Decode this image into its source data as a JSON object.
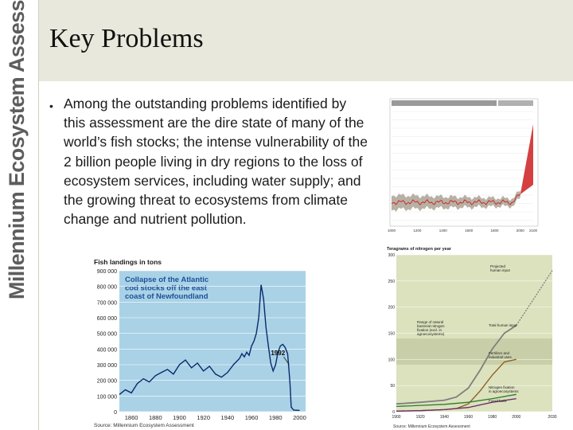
{
  "sidebar": {
    "brand": "Millennium Ecosystem Assessment"
  },
  "slide": {
    "title": "Key Problems",
    "bullet": "Among the outstanding problems identified by this assessment are the dire state of many of the world’s fish stocks; the intense vulnerability of the 2 billion people living in dry regions to the loss of ecosystem services, including water supply; and the growing threat to ecosystems from climate change and nutrient pollution."
  },
  "colors": {
    "header_band": "#e8e8dc",
    "fish_panel": "#a9d2e6",
    "fish_line": "#0a2a6e",
    "fish_title": "#1e4f9a",
    "nitrogen_panel": "#dbe2bd",
    "nitrogen_total": "#7f7f7f",
    "nitrogen_fertilizer": "#8a5a1c",
    "nitrogen_biological": "#2f7a2f",
    "nitrogen_fossil": "#6a2a6a",
    "climate_band": "#b8b0a4",
    "climate_line": "#cc1f1f"
  },
  "chart_data": [
    {
      "type": "line",
      "title": "Fish landings in tons",
      "annotation": "Collapse of the Atlantic cod stocks off the east coast of Newfoundland",
      "marker_label": "1992",
      "source": "Source: Millennium Ecosystem Assessment",
      "x_ticks": [
        "1860",
        "1880",
        "1900",
        "1920",
        "1940",
        "1960",
        "1980",
        "2000"
      ],
      "y_ticks": [
        "0",
        "100 000",
        "200 000",
        "300 000",
        "400 000",
        "500 000",
        "600 000",
        "700 000",
        "800 000",
        "900 000"
      ],
      "xlim": [
        1850,
        2005
      ],
      "ylim": [
        0,
        900000
      ],
      "series": [
        {
          "x": [
            1850,
            1855,
            1860,
            1865,
            1870,
            1875,
            1880,
            1885,
            1890,
            1895,
            1900,
            1905,
            1910,
            1915,
            1920,
            1925,
            1930,
            1935,
            1940,
            1945,
            1950,
            1952,
            1954,
            1956,
            1958,
            1960,
            1962,
            1964,
            1966,
            1968,
            1970,
            1972,
            1974,
            1976,
            1978,
            1980,
            1982,
            1984,
            1986,
            1988,
            1990,
            1991,
            1992,
            1993,
            1995,
            2000
          ],
          "values": [
            110000,
            140000,
            120000,
            180000,
            210000,
            190000,
            230000,
            250000,
            270000,
            240000,
            300000,
            330000,
            280000,
            310000,
            260000,
            290000,
            240000,
            220000,
            250000,
            300000,
            340000,
            370000,
            350000,
            380000,
            360000,
            420000,
            450000,
            500000,
            600000,
            810000,
            720000,
            540000,
            420000,
            310000,
            260000,
            300000,
            380000,
            420000,
            430000,
            410000,
            370000,
            280000,
            180000,
            30000,
            10000,
            8000
          ]
        }
      ]
    },
    {
      "type": "line",
      "title": "Teragrams of nitrogen per year",
      "source": "Source: Millennium Ecosystem Assessment",
      "x_ticks": [
        "1900",
        "1920",
        "1940",
        "1960",
        "1980",
        "2000",
        "2030"
      ],
      "y_ticks": [
        "0",
        "50",
        "100",
        "150",
        "200",
        "250",
        "300"
      ],
      "xlim": [
        1900,
        2030
      ],
      "ylim": [
        0,
        300
      ],
      "annotations": [
        "Projected human input",
        "Range of natural bacterial nitrogen fixation (excl. in agroecosystems)",
        "Total human input",
        "Fertilizer and industrial uses",
        "Nitrogen fixation in agroecosystems",
        "Fossil fuels"
      ],
      "series": [
        {
          "name": "Total human input",
          "x": [
            1900,
            1920,
            1940,
            1950,
            1960,
            1970,
            1980,
            1990,
            2000
          ],
          "values": [
            15,
            18,
            22,
            28,
            45,
            80,
            120,
            150,
            165
          ]
        },
        {
          "name": "Projected human input",
          "x": [
            2000,
            2030
          ],
          "values": [
            165,
            270
          ]
        },
        {
          "name": "Fertilizer and industrial uses",
          "x": [
            1900,
            1920,
            1940,
            1950,
            1960,
            1970,
            1980,
            1990,
            2000
          ],
          "values": [
            1,
            2,
            4,
            6,
            15,
            40,
            70,
            95,
            100
          ]
        },
        {
          "name": "Nitrogen fixation in agroecosystems",
          "x": [
            1900,
            1920,
            1940,
            1960,
            1980,
            2000
          ],
          "values": [
            10,
            12,
            14,
            18,
            25,
            33
          ]
        },
        {
          "name": "Fossil fuels",
          "x": [
            1900,
            1920,
            1940,
            1960,
            1980,
            2000
          ],
          "values": [
            1,
            2,
            4,
            8,
            18,
            25
          ]
        }
      ]
    },
    {
      "type": "line",
      "x_ticks": [
        "1000",
        "1200",
        "1400",
        "1600",
        "1800",
        "2000",
        "2100"
      ],
      "xlim": [
        1000,
        2100
      ]
    }
  ]
}
